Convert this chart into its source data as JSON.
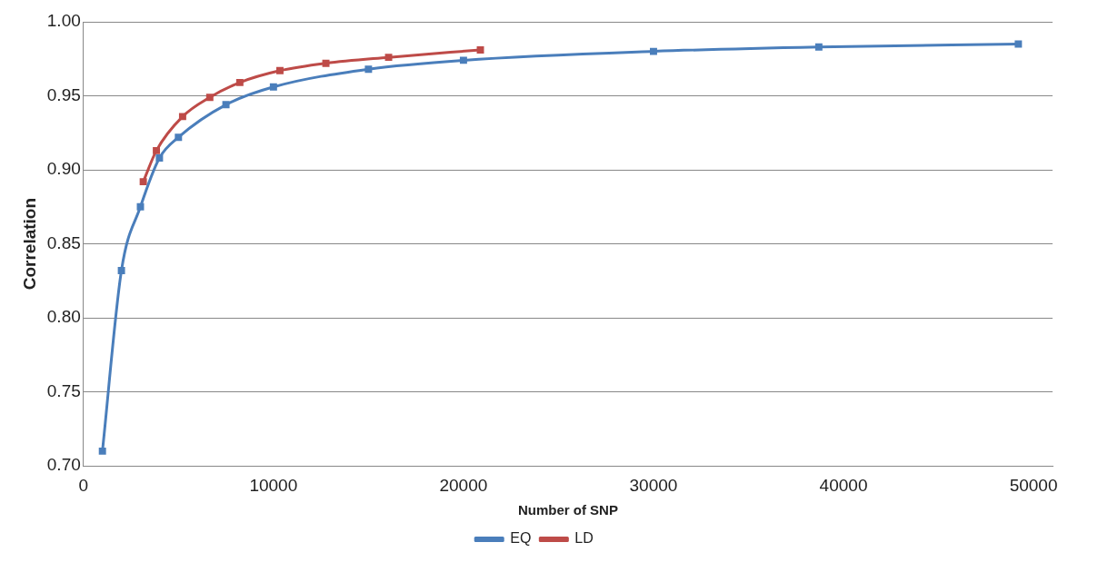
{
  "chart_data": {
    "type": "line",
    "xlabel": "Number of SNP",
    "ylabel": "Correlation",
    "x": [
      1000,
      2000,
      3000,
      4000,
      5000,
      7500,
      10000,
      15000,
      20000,
      30000,
      38700,
      49200
    ],
    "series": [
      {
        "name": "EQ",
        "color": "#4a7ebb",
        "values": [
          0.71,
          0.832,
          0.875,
          0.908,
          0.922,
          0.944,
          0.956,
          0.968,
          0.974,
          0.98,
          0.983,
          0.985
        ]
      },
      {
        "name": "LD",
        "color": "#be4b48",
        "x": [
          3150,
          3840,
          5220,
          6650,
          8230,
          10340,
          12760,
          16060,
          20890
        ],
        "values": [
          0.892,
          0.913,
          0.936,
          0.949,
          0.959,
          0.967,
          0.972,
          0.976,
          0.981
        ]
      }
    ],
    "xlim": [
      0,
      51000
    ],
    "xticks": [
      0,
      10000,
      20000,
      30000,
      40000,
      50000
    ],
    "ylim": [
      0.7,
      1.0
    ],
    "yticks": [
      {
        "value": 0.7,
        "label": "0.70"
      },
      {
        "value": 0.75,
        "label": "0.75"
      },
      {
        "value": 0.8,
        "label": "0.80"
      },
      {
        "value": 0.85,
        "label": "0.85"
      },
      {
        "value": 0.9,
        "label": "0.90"
      },
      {
        "value": 0.95,
        "label": "0.95"
      },
      {
        "value": 1.0,
        "label": "1.00"
      }
    ],
    "grid": "y",
    "legend": "bottom",
    "marker": "square",
    "line_style": "solid"
  }
}
